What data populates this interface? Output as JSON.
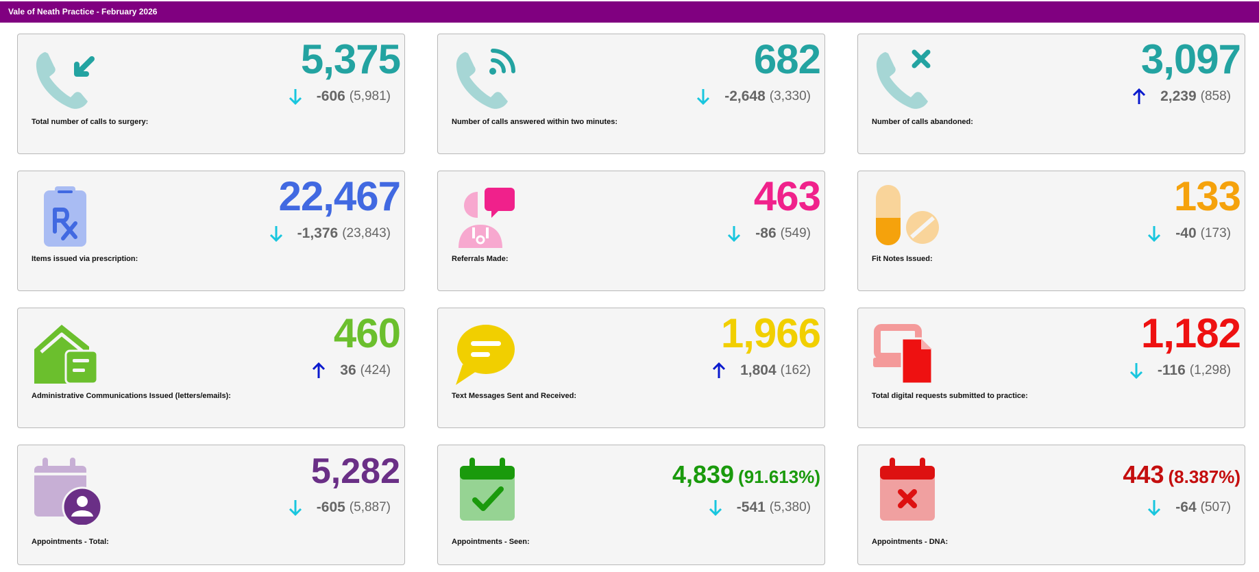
{
  "header": {
    "title": "Vale of Neath Practice - February 2026"
  },
  "colors": {
    "header_bg": "#800080",
    "teal": "#23A3A1",
    "blue": "#4169E1",
    "pink": "#F0218B",
    "orange": "#F5A20C",
    "green": "#6BBF2D",
    "yellow": "#F1CF00",
    "red": "#EE1111",
    "purple": "#6A2F86",
    "dark_green": "#1A9A0C",
    "dark_red": "#C40E0E",
    "arrow_down": "#19C6DE",
    "arrow_up": "#0A1ACD"
  },
  "cards": [
    {
      "id": "calls-total",
      "icon": "phone-incoming-icon",
      "value": "5,375",
      "trend": "down",
      "change": "-606",
      "previous": "(5,981)",
      "label": "Total number of calls to surgery:"
    },
    {
      "id": "calls-answered",
      "icon": "phone-signal-icon",
      "value": "682",
      "trend": "down",
      "change": "-2,648",
      "previous": "(3,330)",
      "label": "Number of calls answered within two minutes:"
    },
    {
      "id": "calls-abandoned",
      "icon": "phone-missed-icon",
      "value": "3,097",
      "trend": "up",
      "change": "2,239",
      "previous": "(858)",
      "label": "Number of calls abandoned:"
    },
    {
      "id": "prescription-items",
      "icon": "prescription-clipboard-icon",
      "value": "22,467",
      "trend": "down",
      "change": "-1,376",
      "previous": "(23,843)",
      "label": "Items issued via prescription:"
    },
    {
      "id": "referrals",
      "icon": "doctor-chat-icon",
      "value": "463",
      "trend": "down",
      "change": "-86",
      "previous": "(549)",
      "label": "Referrals Made:"
    },
    {
      "id": "fit-notes",
      "icon": "pills-icon",
      "value": "133",
      "trend": "down",
      "change": "-40",
      "previous": "(173)",
      "label": "Fit Notes Issued:"
    },
    {
      "id": "admin-comms",
      "icon": "house-letter-icon",
      "value": "460",
      "trend": "up",
      "change": "36",
      "previous": "(424)",
      "label": "Administrative Communications Issued (letters/emails):"
    },
    {
      "id": "text-messages",
      "icon": "speech-bubble-icon",
      "value": "1,966",
      "trend": "up",
      "change": "1,804",
      "previous": "(162)",
      "label": "Text Messages Sent and Received:"
    },
    {
      "id": "digital-requests",
      "icon": "device-document-icon",
      "value": "1,182",
      "trend": "down",
      "change": "-116",
      "previous": "(1,298)",
      "label": "Total digital requests submitted to practice:"
    },
    {
      "id": "appointments-total",
      "icon": "calendar-person-icon",
      "value": "5,282",
      "trend": "down",
      "change": "-605",
      "previous": "(5,887)",
      "label": "Appointments - Total:"
    },
    {
      "id": "appointments-seen",
      "icon": "calendar-check-icon",
      "value": "4,839",
      "percent": "(91.613%)",
      "trend": "down",
      "change": "-541",
      "previous": "(5,380)",
      "label": "Appointments - Seen:"
    },
    {
      "id": "appointments-dna",
      "icon": "calendar-cross-icon",
      "value": "443",
      "percent": "(8.387%)",
      "trend": "down",
      "change": "-64",
      "previous": "(507)",
      "label": "Appointments - DNA:"
    }
  ]
}
